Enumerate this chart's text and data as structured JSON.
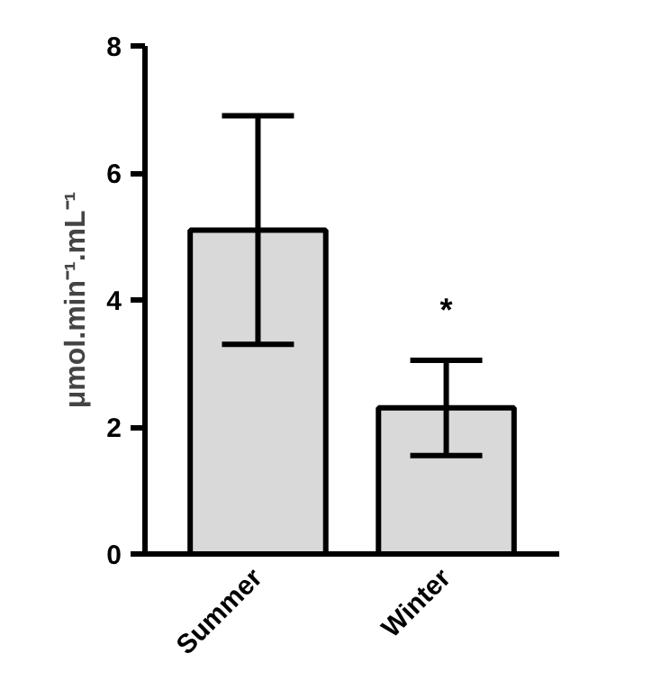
{
  "chart_data": {
    "type": "bar",
    "categories": [
      "Summer",
      "Winter"
    ],
    "values": [
      5.1,
      2.3
    ],
    "errors": [
      1.8,
      0.75
    ],
    "color": "#d9d9d9",
    "ylabel": "μmol.min⁻¹.mL⁻¹",
    "ylim": [
      0,
      8
    ],
    "yticks": [
      0,
      2,
      4,
      6,
      8
    ],
    "grid": false,
    "annotations": [
      "*"
    ]
  }
}
